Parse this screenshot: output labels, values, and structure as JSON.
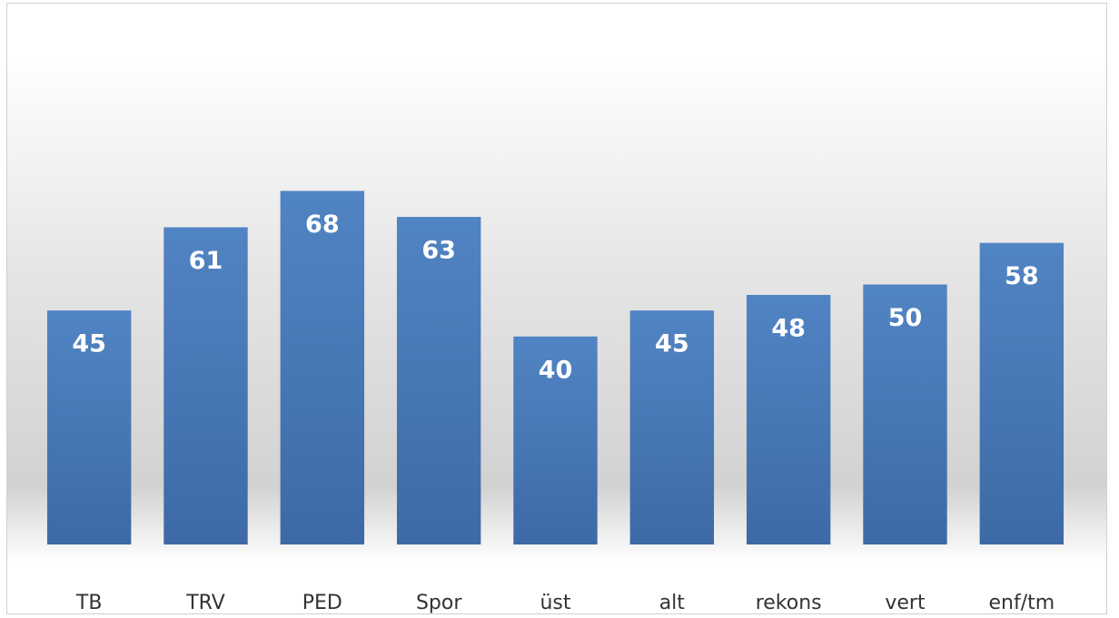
{
  "chart_data": {
    "type": "bar",
    "categories": [
      "TB",
      "TRV",
      "PED",
      "Spor",
      "üst",
      "alt",
      "rekons",
      "vert",
      "enf/tm"
    ],
    "values": [
      45,
      61,
      68,
      63,
      40,
      45,
      48,
      50,
      58
    ],
    "color": "#4a7ab8"
  }
}
